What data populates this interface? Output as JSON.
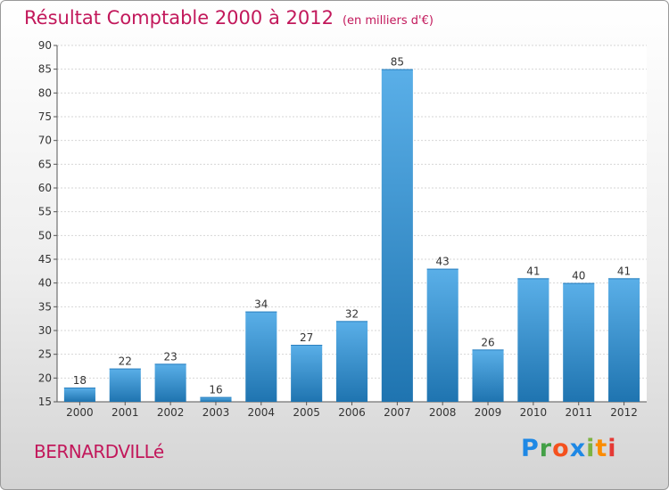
{
  "title": "Résultat Comptable 2000 à 2012",
  "subtitle": "(en milliers d'€)",
  "commune": "BERNARDVILLé",
  "logo": {
    "letters": [
      {
        "ch": "P",
        "color": "#1e88e5"
      },
      {
        "ch": "r",
        "color": "#43a047"
      },
      {
        "ch": "o",
        "color": "#f4511e"
      },
      {
        "ch": "x",
        "color": "#1e88e5"
      },
      {
        "ch": "i",
        "color": "#7cb342"
      },
      {
        "ch": "t",
        "color": "#fb8c00"
      },
      {
        "ch": "i",
        "color": "#e53935"
      }
    ]
  },
  "chart_data": {
    "type": "bar",
    "title": "Résultat Comptable 2000 à 2012",
    "subtitle": "(en milliers d'€)",
    "categories": [
      "2000",
      "2001",
      "2002",
      "2003",
      "2004",
      "2005",
      "2006",
      "2007",
      "2008",
      "2009",
      "2010",
      "2011",
      "2012"
    ],
    "values": [
      18,
      22,
      23,
      16,
      34,
      27,
      32,
      85,
      43,
      26,
      41,
      40,
      41
    ],
    "ylim": [
      15,
      90
    ],
    "yticks": [
      15,
      20,
      25,
      30,
      35,
      40,
      45,
      50,
      55,
      60,
      65,
      70,
      75,
      80,
      85,
      90
    ],
    "grid": true,
    "bar_color_top": "#5aafe8",
    "bar_color_bottom": "#1f74b0"
  }
}
